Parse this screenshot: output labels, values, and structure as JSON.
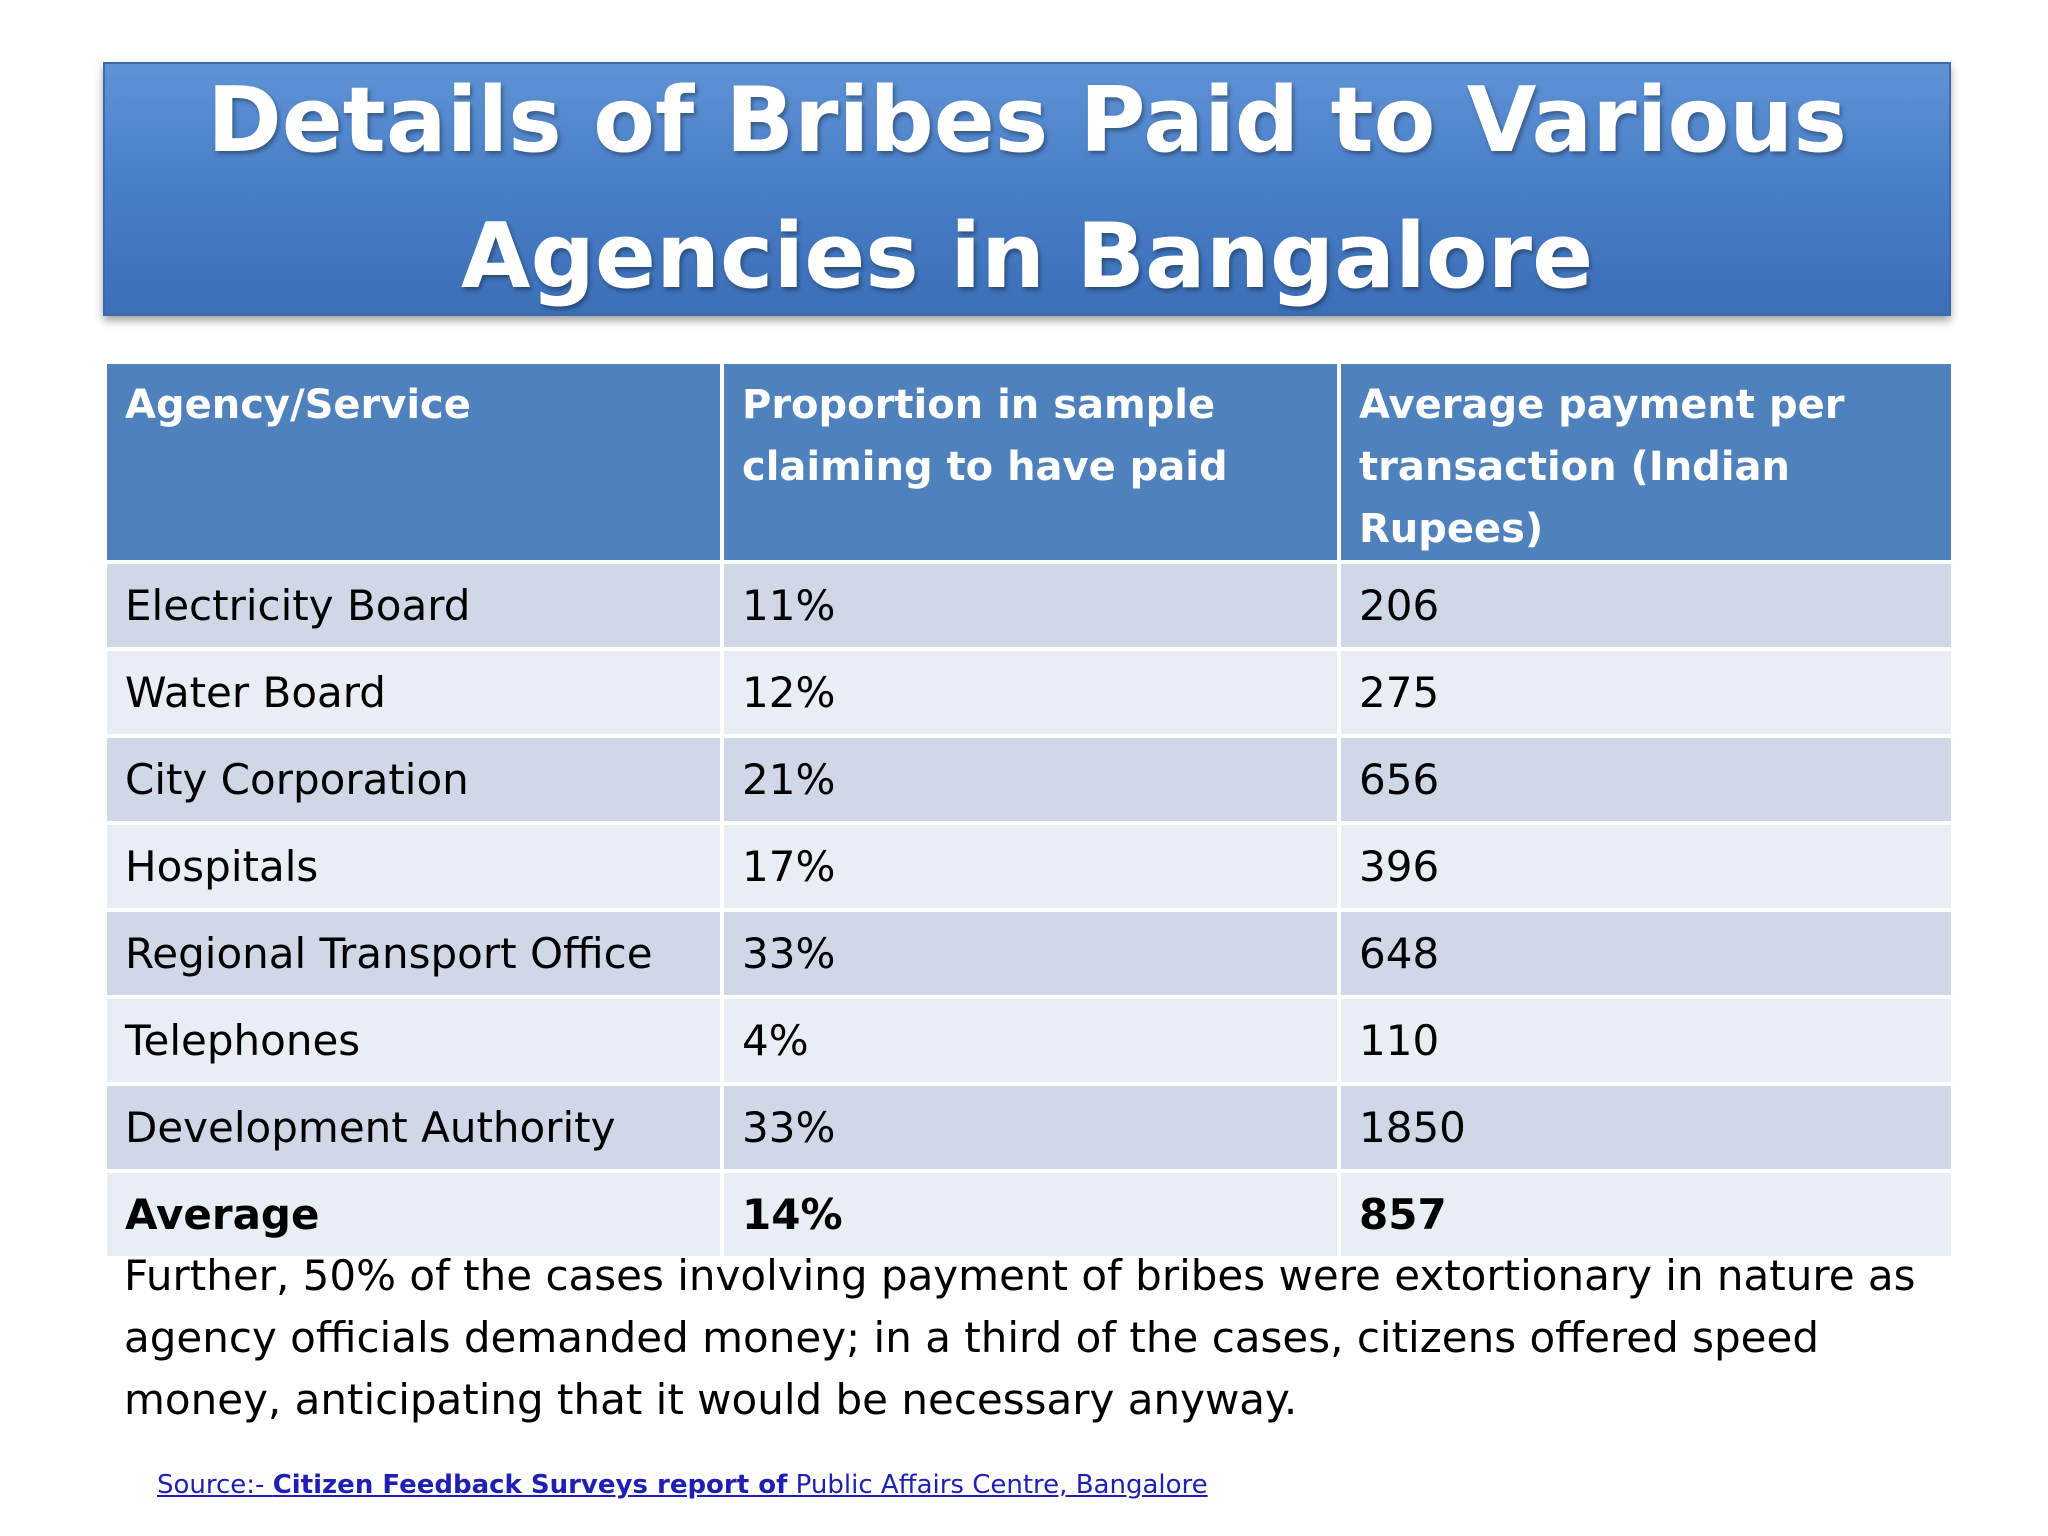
{
  "title": "Details of Bribes Paid to Various\nAgencies in Bangalore",
  "table": {
    "headers": [
      "Agency/Service",
      "Proportion in sample claiming to have paid",
      "Average payment per transaction (Indian Rupees)"
    ],
    "rows": [
      [
        "Electricity Board",
        "11%",
        "206"
      ],
      [
        "Water Board",
        "12%",
        "275"
      ],
      [
        "City Corporation",
        "21%",
        "656"
      ],
      [
        "Hospitals",
        "17%",
        "396"
      ],
      [
        "Regional Transport Office",
        "33%",
        "648"
      ],
      [
        "Telephones",
        "4%",
        "110"
      ],
      [
        "Development Authority",
        "33%",
        "1850"
      ]
    ],
    "average": [
      "Average",
      "14%",
      "857"
    ]
  },
  "note": "Further, 50% of the cases involving payment of bribes were extortionary in nature as agency officials demanded money; in a third of the cases, citizens offered speed money, anticipating that it would be necessary anyway.",
  "source": {
    "prefix": "Source:- ",
    "bold": "Citizen Feedback Surveys report of",
    "rest": " Public Affairs Centre, Bangalore"
  },
  "colors": {
    "title_band": "#4a80c8",
    "header_bg": "#4f81bd",
    "row_odd": "#d0d8e8",
    "row_even": "#e9edf4",
    "link": "#1f1fb4"
  }
}
